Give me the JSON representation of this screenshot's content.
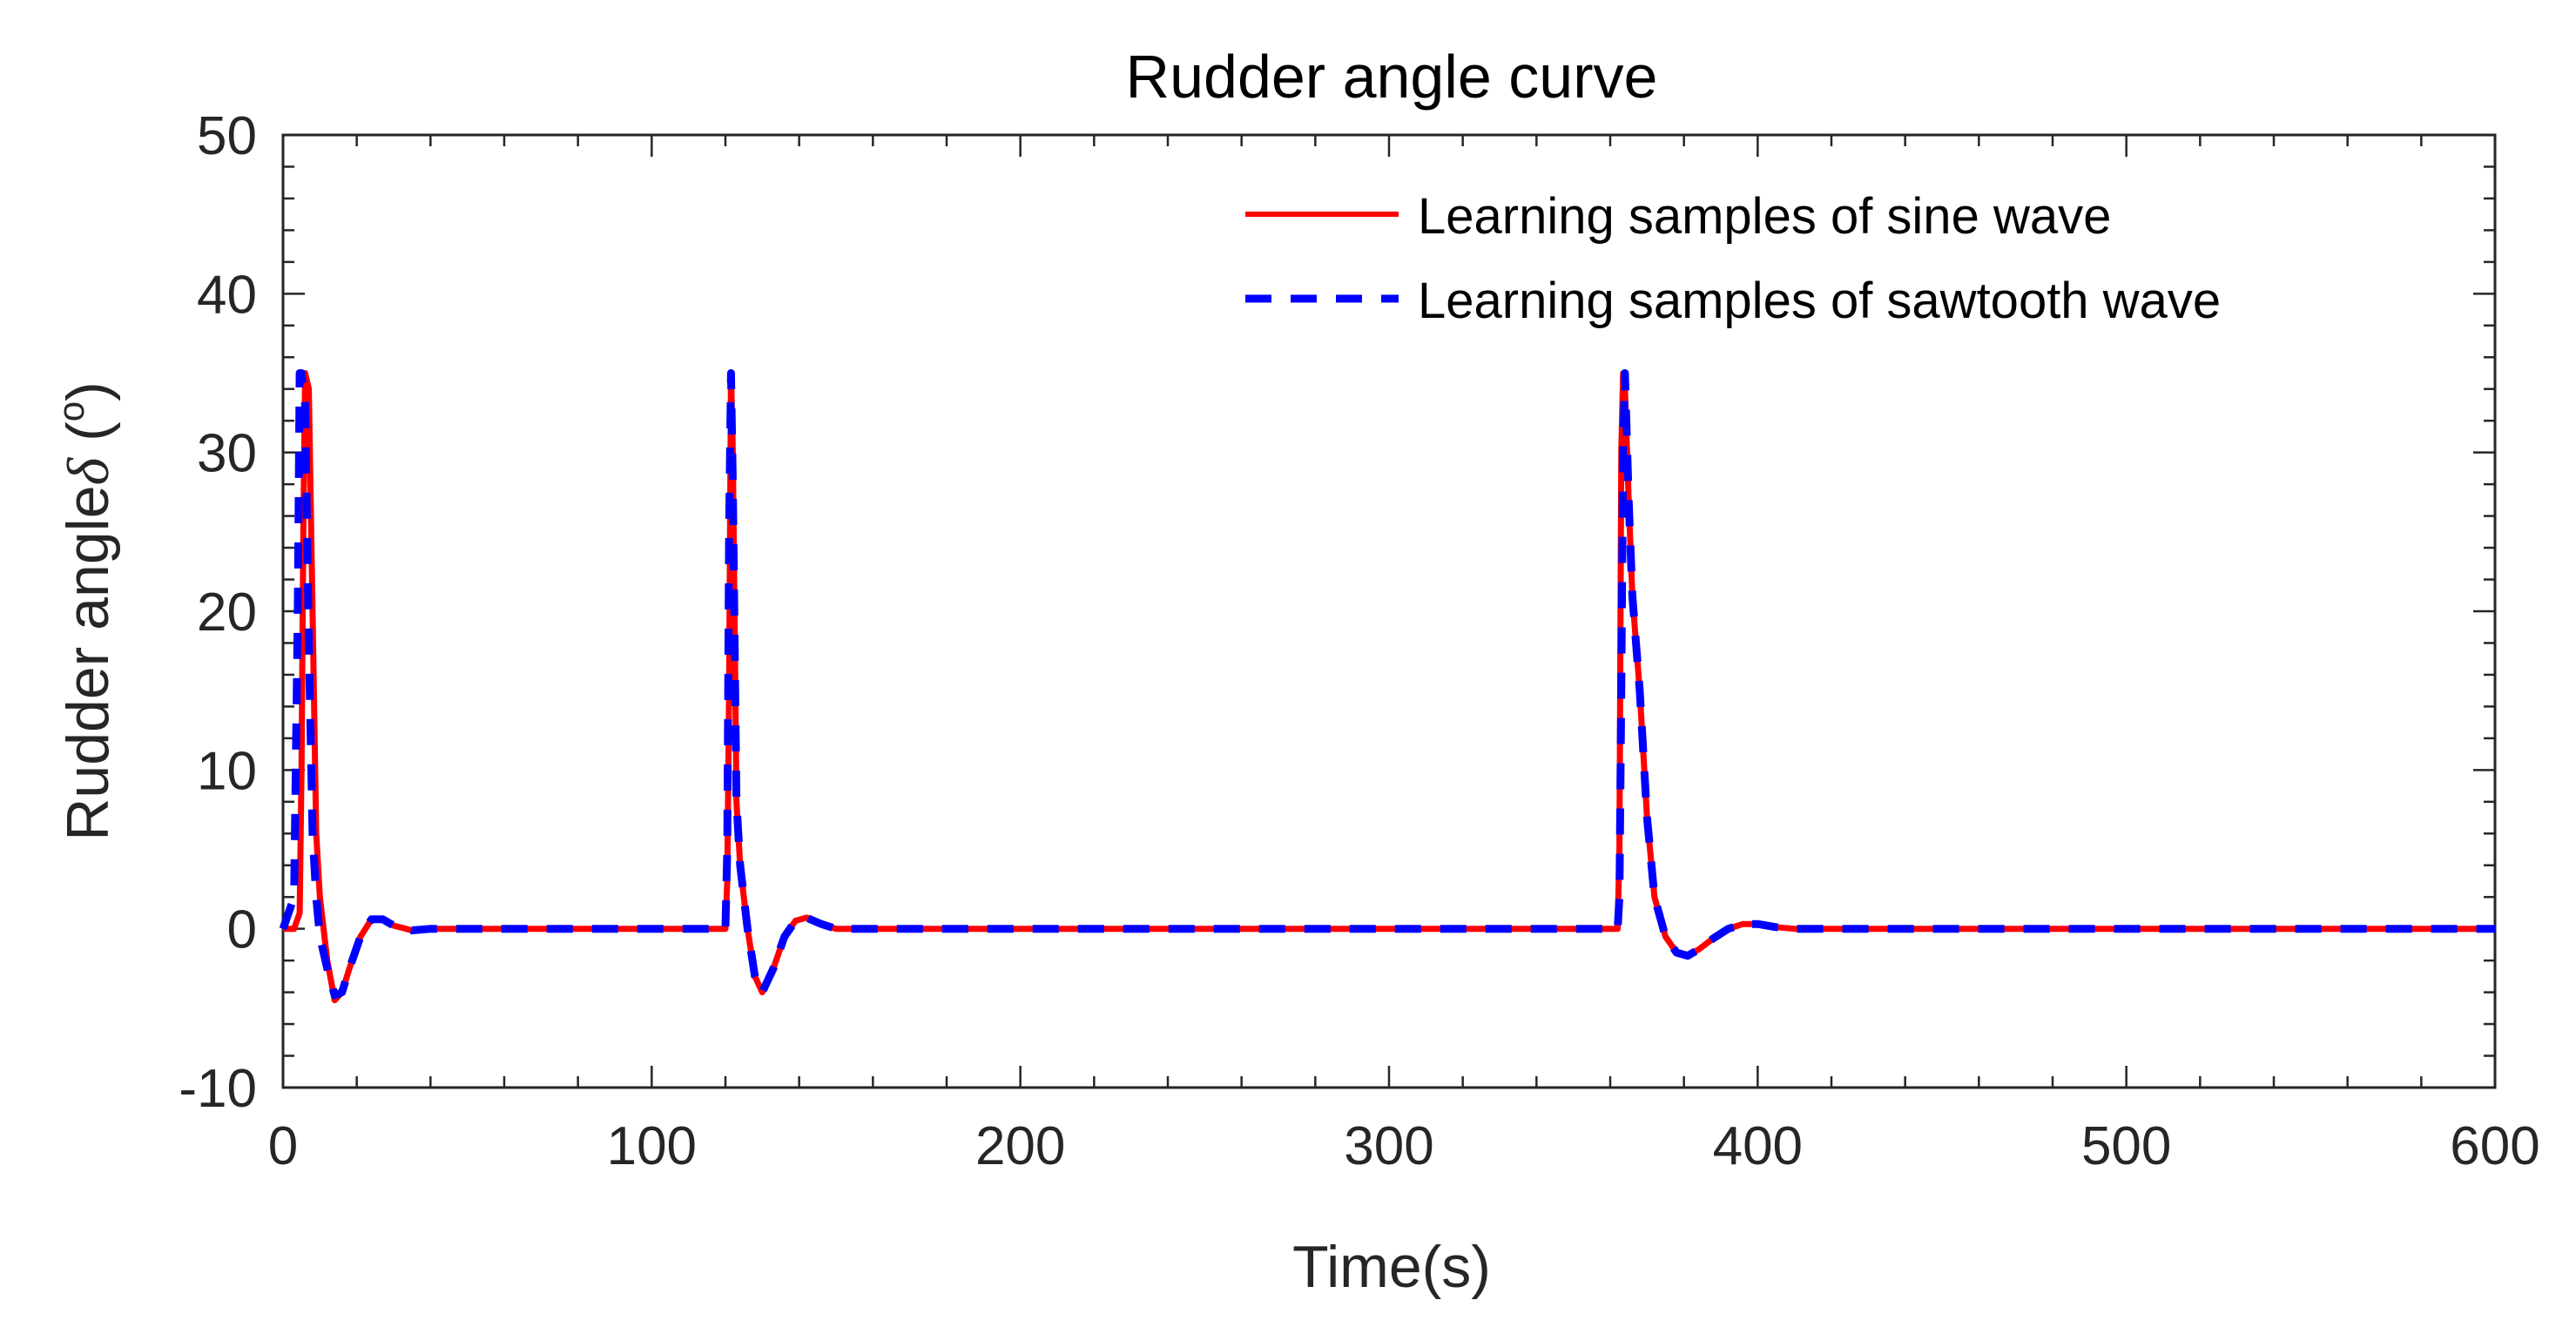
{
  "chart_data": {
    "type": "line",
    "title": "Rudder angle curve",
    "xlabel": "Time(s)",
    "ylabel_main": "Rudder angle",
    "ylabel_symbol": "δ",
    "ylabel_units_open": " (",
    "ylabel_units_sup": "o",
    "ylabel_units_close": ")",
    "xlim": [
      0,
      600
    ],
    "ylim": [
      -10,
      50
    ],
    "xticks": [
      0,
      100,
      200,
      300,
      400,
      500,
      600
    ],
    "xtick_labels": [
      "0",
      "100",
      "200",
      "300",
      "400",
      "500",
      "600"
    ],
    "yticks": [
      -10,
      0,
      10,
      20,
      30,
      40,
      50
    ],
    "ytick_labels": [
      "-10",
      "0",
      "10",
      "20",
      "30",
      "40",
      "50"
    ],
    "legend_position": "top-right",
    "grid": false,
    "series": [
      {
        "name": "Learning samples of sine wave",
        "color": "#ff0000",
        "style": "solid",
        "x": [
          0,
          3,
          4.5,
          5,
          5.5,
          6,
          7,
          8,
          9,
          10,
          12,
          14,
          16,
          18,
          21,
          24,
          27,
          30,
          35,
          40,
          50,
          120,
          120.5,
          121,
          121.5,
          122,
          123,
          124,
          126,
          128,
          130,
          133,
          136,
          139,
          142,
          146,
          150,
          155,
          160,
          362,
          362.5,
          363,
          363.5,
          364,
          365,
          366,
          367,
          368,
          370,
          372,
          375,
          378,
          381,
          384,
          388,
          392,
          396,
          400,
          405,
          410,
          420,
          600
        ],
        "values": [
          0,
          0,
          1,
          10,
          25,
          35,
          34,
          20,
          6,
          2,
          -2,
          -4.5,
          -4,
          -2.5,
          -0.5,
          0.6,
          0.6,
          0.2,
          -0.1,
          0,
          0,
          0,
          3,
          15,
          35,
          30,
          8,
          4,
          0,
          -3,
          -4,
          -2.5,
          -0.5,
          0.5,
          0.7,
          0.3,
          0,
          0,
          0,
          0,
          5,
          30,
          35,
          34,
          27,
          21,
          18,
          15,
          7,
          2,
          -0.5,
          -1.5,
          -1.7,
          -1.3,
          -0.6,
          0,
          0.3,
          0.3,
          0.1,
          0,
          0,
          0
        ]
      },
      {
        "name": "Learning samples of sawtooth wave",
        "color": "#0000ff",
        "style": "dashed",
        "x": [
          0,
          3,
          4,
          4.5,
          5,
          6,
          7,
          8,
          9,
          10,
          12,
          14,
          16,
          18,
          21,
          24,
          27,
          30,
          35,
          40,
          50,
          120,
          120.5,
          121,
          121.5,
          122,
          123,
          124,
          126,
          128,
          130,
          133,
          136,
          139,
          142,
          146,
          150,
          155,
          160,
          362,
          362.5,
          363,
          363.5,
          364,
          365,
          366,
          367,
          368,
          370,
          372,
          375,
          378,
          381,
          384,
          388,
          392,
          396,
          400,
          405,
          410,
          420,
          600
        ],
        "values": [
          0,
          2,
          20,
          35,
          35,
          33,
          18,
          6,
          2,
          -0.5,
          -2.5,
          -4.2,
          -4,
          -2.5,
          -0.5,
          0.6,
          0.6,
          0.2,
          -0.1,
          0,
          0,
          0,
          5,
          25,
          35,
          28,
          8,
          4,
          0,
          -3,
          -4,
          -2.5,
          -0.5,
          0.5,
          0.7,
          0.3,
          0,
          0,
          0,
          0,
          2,
          15,
          30,
          35,
          27,
          21,
          18,
          15,
          7,
          2,
          -0.5,
          -1.5,
          -1.7,
          -1.3,
          -0.6,
          0,
          0.3,
          0.3,
          0.1,
          0,
          0,
          0
        ]
      }
    ]
  }
}
